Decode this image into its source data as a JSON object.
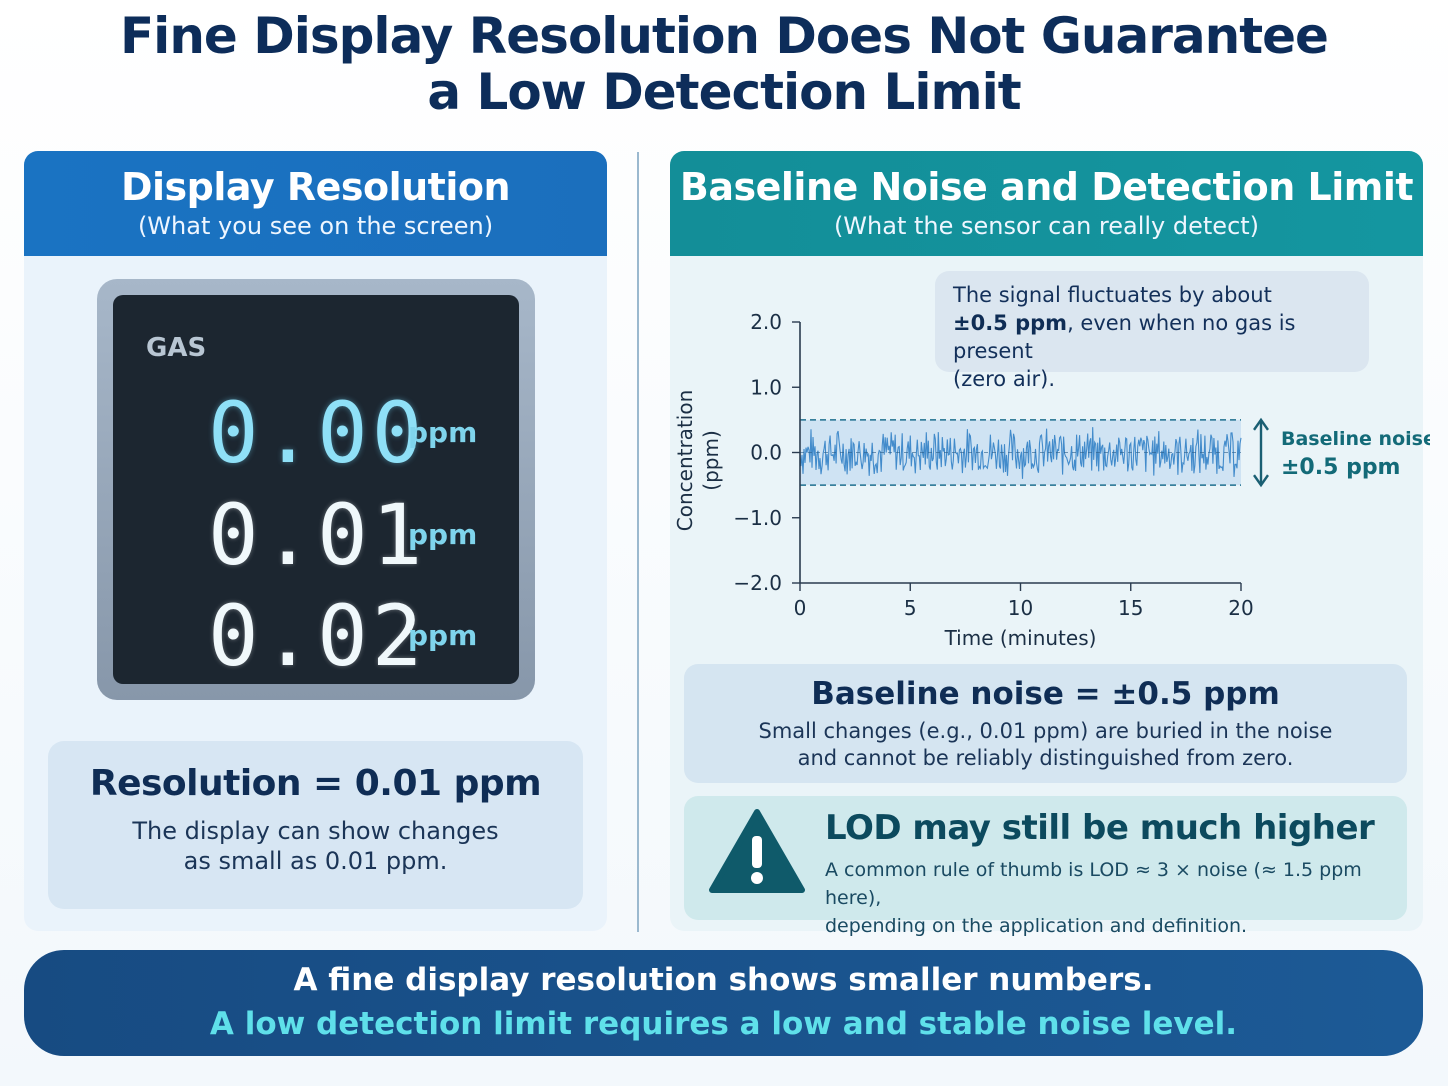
{
  "title": {
    "line1": "Fine Display Resolution Does Not Guarantee",
    "line2": "a Low Detection Limit"
  },
  "left_panel": {
    "heading": "Display Resolution",
    "subheading": "(What you see on the screen)",
    "device": {
      "label": "GAS",
      "readings": [
        {
          "value": "0.00",
          "unit": "ppm"
        },
        {
          "value": "0.01",
          "unit": "ppm"
        },
        {
          "value": "0.02",
          "unit": "ppm"
        }
      ]
    },
    "summary": {
      "heading": "Resolution = 0.01 ppm",
      "text_line1": "The display can show changes",
      "text_line2": "as small as 0.01 ppm."
    }
  },
  "right_panel": {
    "heading": "Baseline Noise and Detection Limit",
    "subheading": "(What the sensor can really detect)",
    "callout": {
      "line1": "The signal fluctuates by about",
      "bold": "±0.5 ppm",
      "line2_rest": ", even when no gas is present",
      "line3": "(zero air)."
    },
    "noise_summary": {
      "heading": "Baseline noise = ±0.5 ppm",
      "text_line1": "Small changes (e.g., 0.01 ppm) are buried in the noise",
      "text_line2": "and cannot be reliably distinguished from zero."
    },
    "lod": {
      "heading": "LOD may still be much higher",
      "text_line1": "A common rule of thumb is LOD ≈ 3 × noise (≈ 1.5 ppm here),",
      "text_line2": "depending on the application and definition."
    }
  },
  "chart_data": {
    "type": "line",
    "xlabel": "Time (minutes)",
    "ylabel": "Concentration (ppm)",
    "xlim": [
      0,
      20
    ],
    "ylim": [
      -2.0,
      2.0
    ],
    "x_ticks": [
      "0",
      "5",
      "10",
      "15",
      "20"
    ],
    "y_ticks": [
      "2.0",
      "1.0",
      "0.0",
      "−1.0",
      "−2.0"
    ],
    "series": [
      {
        "x_start": 0,
        "x_end": 20,
        "mean": 0.0,
        "amplitude": 0.5
      }
    ],
    "band": {
      "lower": -0.5,
      "upper": 0.5
    },
    "annotation": {
      "line1": "Baseline noise",
      "line2": "±0.5 ppm"
    }
  },
  "footer": {
    "line1": "A fine display resolution shows smaller numbers.",
    "line2": "A low detection limit requires a low and stable noise level."
  },
  "colors": {
    "left_header": "#1a73c2",
    "right_header": "#138e98",
    "noise_line": "#3a86c8",
    "band_fill": "#cfe3f3",
    "band_border": "#1f6f8f",
    "warning": "#0f5a6a",
    "footer_bg": "#174b82",
    "footer_accent": "#5fe0ea"
  }
}
